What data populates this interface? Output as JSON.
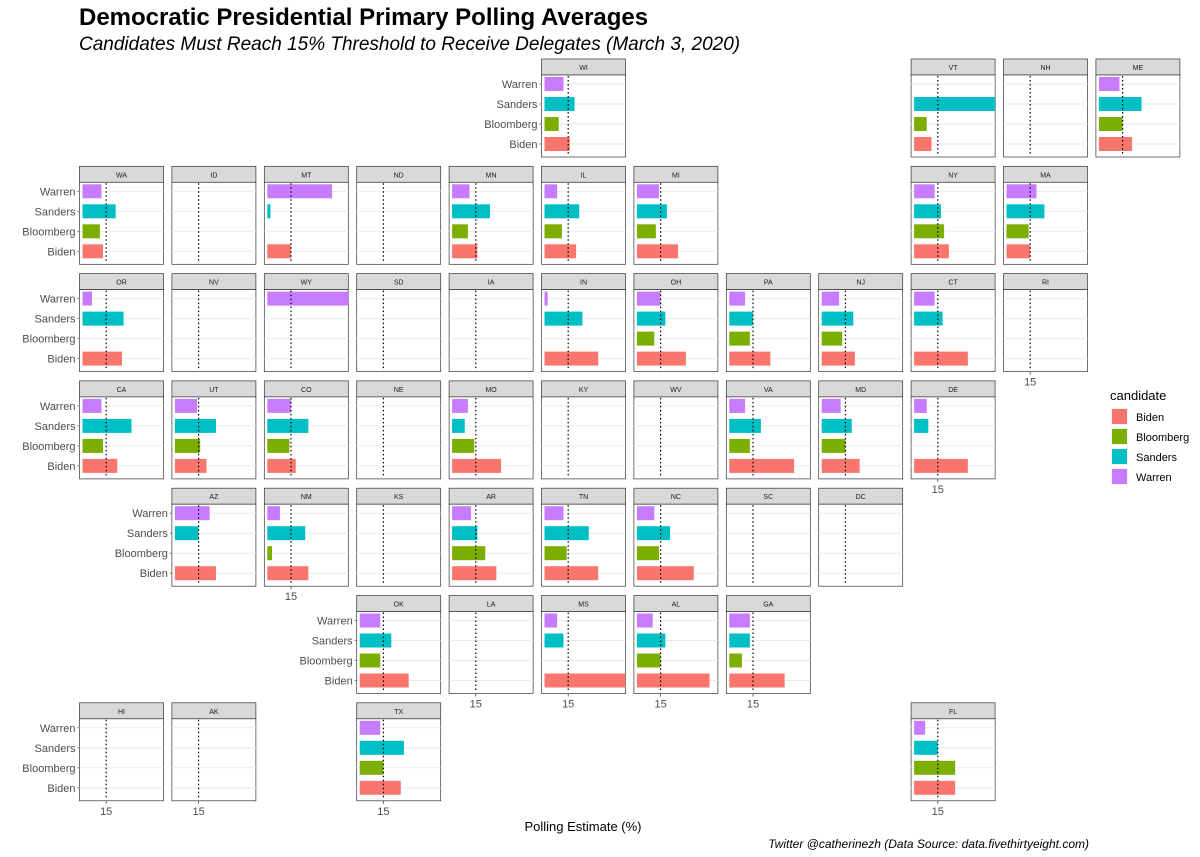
{
  "chart_data": {
    "type": "bar",
    "orientation": "horizontal",
    "title": "Democratic Presidential Primary Polling Averages",
    "subtitle": "Candidates Must Reach 15% Threshold to Receive Delegates (March 3, 2020)",
    "xlabel": "Polling Estimate (%)",
    "caption": "Twitter @catherinezh (Data Source: data.fivethirtyeight.com)",
    "categories": [
      "Warren",
      "Sanders",
      "Bloomberg",
      "Biden"
    ],
    "threshold": 15,
    "threshold_label": "15",
    "xlim": [
      0,
      50
    ],
    "facet_type": "state grid map",
    "legend": {
      "title": "candidate",
      "position": "right",
      "entries": [
        {
          "name": "Biden",
          "color": "#F8766D"
        },
        {
          "name": "Bloomberg",
          "color": "#7CAE00"
        },
        {
          "name": "Sanders",
          "color": "#00BFC4"
        },
        {
          "name": "Warren",
          "color": "#C77CFF"
        }
      ]
    },
    "panels": [
      {
        "state": "WI",
        "row": 0,
        "col": 5,
        "values": {
          "Warren": 12,
          "Sanders": 19,
          "Bloomberg": 9,
          "Biden": 16
        }
      },
      {
        "state": "VT",
        "row": 0,
        "col": 9,
        "values": {
          "Warren": 0,
          "Sanders": 52,
          "Bloomberg": 8,
          "Biden": 11
        }
      },
      {
        "state": "NH",
        "row": 0,
        "col": 10,
        "values": {}
      },
      {
        "state": "ME",
        "row": 0,
        "col": 11,
        "values": {
          "Warren": 13,
          "Sanders": 27,
          "Bloomberg": 15,
          "Biden": 21
        }
      },
      {
        "state": "WA",
        "row": 1,
        "col": 0,
        "values": {
          "Warren": 12,
          "Sanders": 21,
          "Bloomberg": 11,
          "Biden": 13
        }
      },
      {
        "state": "ID",
        "row": 1,
        "col": 1,
        "values": {}
      },
      {
        "state": "MT",
        "row": 1,
        "col": 2,
        "values": {
          "Warren": 41,
          "Sanders": 2,
          "Bloomberg": 0,
          "Biden": 15
        }
      },
      {
        "state": "ND",
        "row": 1,
        "col": 3,
        "values": {}
      },
      {
        "state": "MN",
        "row": 1,
        "col": 4,
        "values": {
          "Warren": 11,
          "Sanders": 24,
          "Bloomberg": 10,
          "Biden": 16
        }
      },
      {
        "state": "IL",
        "row": 1,
        "col": 5,
        "values": {
          "Warren": 8,
          "Sanders": 22,
          "Bloomberg": 11,
          "Biden": 20
        }
      },
      {
        "state": "MI",
        "row": 1,
        "col": 6,
        "values": {
          "Warren": 14,
          "Sanders": 19,
          "Bloomberg": 12,
          "Biden": 26
        }
      },
      {
        "state": "NY",
        "row": 1,
        "col": 9,
        "values": {
          "Warren": 13,
          "Sanders": 17,
          "Bloomberg": 19,
          "Biden": 22
        }
      },
      {
        "state": "MA",
        "row": 1,
        "col": 10,
        "values": {
          "Warren": 19,
          "Sanders": 24,
          "Bloomberg": 14,
          "Biden": 15
        }
      },
      {
        "state": "OR",
        "row": 2,
        "col": 0,
        "values": {
          "Warren": 6,
          "Sanders": 26,
          "Bloomberg": 0,
          "Biden": 25
        }
      },
      {
        "state": "NV",
        "row": 2,
        "col": 1,
        "values": {}
      },
      {
        "state": "WY",
        "row": 2,
        "col": 2,
        "values": {
          "Warren": 86,
          "Sanders": 0,
          "Bloomberg": 0,
          "Biden": 0
        }
      },
      {
        "state": "SD",
        "row": 2,
        "col": 3,
        "values": {}
      },
      {
        "state": "IA",
        "row": 2,
        "col": 4,
        "values": {}
      },
      {
        "state": "IN",
        "row": 2,
        "col": 5,
        "values": {
          "Warren": 2,
          "Sanders": 24,
          "Bloomberg": 0,
          "Biden": 34
        }
      },
      {
        "state": "OH",
        "row": 2,
        "col": 6,
        "values": {
          "Warren": 15,
          "Sanders": 18,
          "Bloomberg": 11,
          "Biden": 31
        }
      },
      {
        "state": "PA",
        "row": 2,
        "col": 7,
        "values": {
          "Warren": 10,
          "Sanders": 15,
          "Bloomberg": 13,
          "Biden": 26
        }
      },
      {
        "state": "NJ",
        "row": 2,
        "col": 8,
        "values": {
          "Warren": 11,
          "Sanders": 20,
          "Bloomberg": 13,
          "Biden": 21
        }
      },
      {
        "state": "CT",
        "row": 2,
        "col": 9,
        "values": {
          "Warren": 13,
          "Sanders": 18,
          "Bloomberg": 0,
          "Biden": 34
        }
      },
      {
        "state": "RI",
        "row": 2,
        "col": 10,
        "values": {},
        "show_x_axis": true
      },
      {
        "state": "CA",
        "row": 3,
        "col": 0,
        "values": {
          "Warren": 12,
          "Sanders": 31,
          "Bloomberg": 13,
          "Biden": 22
        }
      },
      {
        "state": "UT",
        "row": 3,
        "col": 1,
        "values": {
          "Warren": 14,
          "Sanders": 26,
          "Bloomberg": 16,
          "Biden": 20
        }
      },
      {
        "state": "CO",
        "row": 3,
        "col": 2,
        "values": {
          "Warren": 15,
          "Sanders": 26,
          "Bloomberg": 14,
          "Biden": 18
        }
      },
      {
        "state": "NE",
        "row": 3,
        "col": 3,
        "values": {}
      },
      {
        "state": "MO",
        "row": 3,
        "col": 4,
        "values": {
          "Warren": 10,
          "Sanders": 8,
          "Bloomberg": 14,
          "Biden": 31
        }
      },
      {
        "state": "KY",
        "row": 3,
        "col": 5,
        "values": {}
      },
      {
        "state": "WV",
        "row": 3,
        "col": 6,
        "values": {}
      },
      {
        "state": "VA",
        "row": 3,
        "col": 7,
        "values": {
          "Warren": 10,
          "Sanders": 20,
          "Bloomberg": 13,
          "Biden": 41
        }
      },
      {
        "state": "MD",
        "row": 3,
        "col": 8,
        "values": {
          "Warren": 12,
          "Sanders": 19,
          "Bloomberg": 15,
          "Biden": 24
        }
      },
      {
        "state": "DE",
        "row": 3,
        "col": 9,
        "values": {
          "Warren": 8,
          "Sanders": 9,
          "Bloomberg": 0,
          "Biden": 34
        },
        "show_x_axis": true
      },
      {
        "state": "AZ",
        "row": 4,
        "col": 1,
        "values": {
          "Warren": 22,
          "Sanders": 15,
          "Bloomberg": 0,
          "Biden": 26
        }
      },
      {
        "state": "NM",
        "row": 4,
        "col": 2,
        "values": {
          "Warren": 8,
          "Sanders": 24,
          "Bloomberg": 3,
          "Biden": 26
        },
        "show_x_axis": true
      },
      {
        "state": "KS",
        "row": 4,
        "col": 3,
        "values": {}
      },
      {
        "state": "AR",
        "row": 4,
        "col": 4,
        "values": {
          "Warren": 12,
          "Sanders": 16,
          "Bloomberg": 21,
          "Biden": 28
        }
      },
      {
        "state": "TN",
        "row": 4,
        "col": 5,
        "values": {
          "Warren": 12,
          "Sanders": 28,
          "Bloomberg": 14,
          "Biden": 34
        }
      },
      {
        "state": "NC",
        "row": 4,
        "col": 6,
        "values": {
          "Warren": 11,
          "Sanders": 21,
          "Bloomberg": 14,
          "Biden": 36
        }
      },
      {
        "state": "SC",
        "row": 4,
        "col": 7,
        "values": {}
      },
      {
        "state": "DC",
        "row": 4,
        "col": 8,
        "values": {}
      },
      {
        "state": "OK",
        "row": 5,
        "col": 3,
        "values": {
          "Warren": 13,
          "Sanders": 20,
          "Bloomberg": 13,
          "Biden": 31
        }
      },
      {
        "state": "LA",
        "row": 5,
        "col": 4,
        "values": {},
        "show_x_axis": true
      },
      {
        "state": "MS",
        "row": 5,
        "col": 5,
        "values": {
          "Warren": 8,
          "Sanders": 12,
          "Bloomberg": 0,
          "Biden": 52
        },
        "show_x_axis": true
      },
      {
        "state": "AL",
        "row": 5,
        "col": 6,
        "values": {
          "Warren": 10,
          "Sanders": 18,
          "Bloomberg": 15,
          "Biden": 46
        },
        "show_x_axis": true
      },
      {
        "state": "GA",
        "row": 5,
        "col": 7,
        "values": {
          "Warren": 13,
          "Sanders": 13,
          "Bloomberg": 8,
          "Biden": 35
        },
        "show_x_axis": true
      },
      {
        "state": "HI",
        "row": 6,
        "col": 0,
        "values": {},
        "show_x_axis": true
      },
      {
        "state": "AK",
        "row": 6,
        "col": 1,
        "values": {},
        "show_x_axis": true
      },
      {
        "state": "TX",
        "row": 6,
        "col": 3,
        "values": {
          "Warren": 13,
          "Sanders": 28,
          "Bloomberg": 15,
          "Biden": 26
        },
        "show_x_axis": true
      },
      {
        "state": "FL",
        "row": 6,
        "col": 9,
        "values": {
          "Warren": 7,
          "Sanders": 15,
          "Bloomberg": 26,
          "Biden": 26
        },
        "show_x_axis": true
      }
    ]
  }
}
